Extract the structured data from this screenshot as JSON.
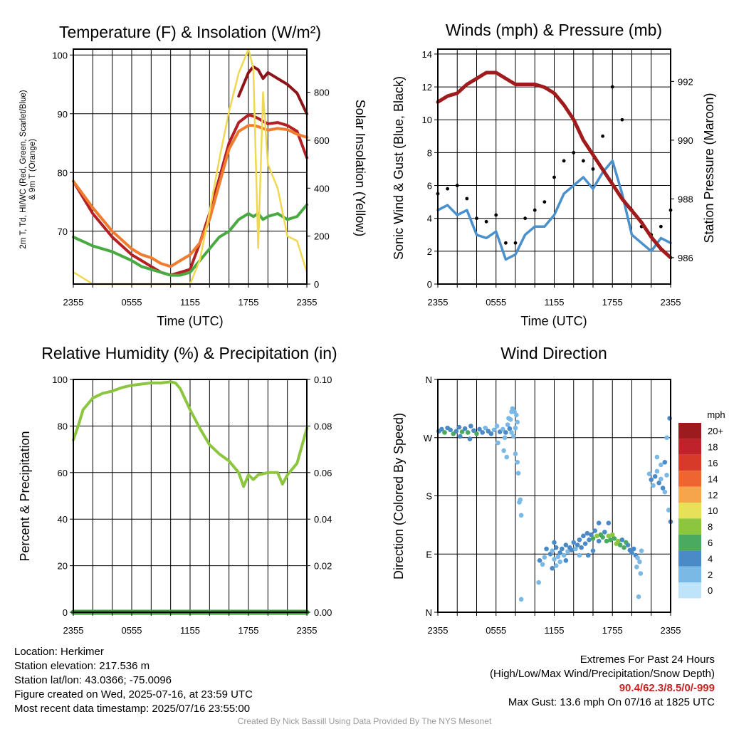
{
  "chart_data": [
    {
      "type": "line",
      "title": "Temperature (F) & Insolation (W/m²)",
      "xlabel": "Time (UTC)",
      "ylabel_line1": "2m T, Td, HI/WC (Red, Green, Scarlet/Blue)",
      "ylabel_line2": "& 9m T (Orange)",
      "y2label": "Solar Insolation (Yellow)",
      "x_ticks": [
        "2355",
        "0555",
        "1155",
        "1755",
        "2355"
      ],
      "y_ticks": [
        "70",
        "80",
        "90",
        "100"
      ],
      "y2_ticks": [
        "0",
        "200",
        "400",
        "600",
        "800"
      ],
      "ylim": [
        61,
        101
      ],
      "y2lim": [
        0,
        980
      ],
      "x_hours": [
        0,
        2,
        4,
        6,
        7,
        8,
        9,
        10,
        11,
        12,
        13,
        14,
        15,
        16,
        17,
        18,
        18.5,
        19,
        19.5,
        20,
        21,
        22,
        23,
        24
      ],
      "series": [
        {
          "key": "t2m",
          "color": "#b52025",
          "values": [
            78.5,
            73,
            69,
            66,
            65,
            64,
            63,
            62.5,
            63,
            63.5,
            68,
            73,
            79,
            85,
            88.5,
            89.8,
            89.6,
            89.2,
            88.7,
            88.3,
            88.5,
            88,
            87,
            82.5
          ]
        },
        {
          "key": "t9m",
          "color": "#f07c30",
          "values": [
            78.5,
            74,
            70,
            67,
            66,
            65.5,
            64.5,
            64,
            65,
            66,
            68,
            72,
            78,
            84,
            87,
            88,
            88,
            87.8,
            87.5,
            87.2,
            87.5,
            87.3,
            86.5,
            86
          ]
        },
        {
          "key": "td",
          "color": "#4aaa42",
          "values": [
            69,
            67.5,
            66.5,
            65,
            64,
            63.5,
            63,
            62.5,
            62.5,
            63,
            65,
            67,
            69,
            70,
            72,
            73,
            72.5,
            73,
            72,
            72.5,
            73,
            72,
            72.5,
            74.5
          ]
        },
        {
          "key": "hi",
          "color": "#8c1418",
          "values": [
            null,
            null,
            null,
            null,
            null,
            null,
            null,
            null,
            null,
            null,
            null,
            null,
            null,
            null,
            93,
            97,
            98,
            97.5,
            96,
            97,
            96,
            95,
            93.5,
            90
          ]
        },
        {
          "key": "solar",
          "axis": "right",
          "color": "#f0d850",
          "values": [
            50,
            0,
            0,
            0,
            0,
            0,
            0,
            0,
            0,
            0,
            100,
            300,
            520,
            720,
            880,
            980,
            900,
            150,
            800,
            500,
            400,
            200,
            180,
            50
          ]
        }
      ]
    },
    {
      "type": "line",
      "title": "Winds (mph) & Pressure (mb)",
      "xlabel": "Time (UTC)",
      "ylabel": "Sonic Wind & Gust (Blue, Black)",
      "y2label": "Station Pressure (Maroon)",
      "x_ticks": [
        "2355",
        "0555",
        "1155",
        "1755",
        "2355"
      ],
      "y_ticks": [
        "0",
        "2",
        "4",
        "6",
        "8",
        "10",
        "12",
        "14"
      ],
      "y2_ticks": [
        "986",
        "988",
        "990",
        "992"
      ],
      "ylim": [
        0,
        14.3
      ],
      "y2lim": [
        985.1,
        993.1
      ],
      "wind_x_hours": [
        0,
        1,
        2,
        3,
        4,
        5,
        6,
        7,
        8,
        9,
        10,
        11,
        12,
        13,
        14,
        15,
        16,
        17,
        18,
        19,
        20,
        21,
        22,
        23,
        24
      ],
      "wind": {
        "name": "Sonic Wind",
        "color": "#4a90cc",
        "values": [
          4.5,
          4.8,
          4.2,
          4.5,
          3.0,
          2.8,
          3.2,
          1.5,
          1.8,
          3.0,
          3.5,
          3.5,
          4.2,
          5.5,
          6.0,
          6.5,
          5.8,
          6.8,
          7.5,
          5.5,
          3.0,
          2.5,
          2.0,
          2.8,
          2.5
        ]
      },
      "gust": {
        "name": "Gust",
        "color": "#000000",
        "values": [
          5.5,
          5.8,
          6.0,
          5.2,
          4.0,
          3.8,
          4.2,
          2.5,
          2.5,
          4.0,
          4.5,
          5.0,
          6.5,
          7.5,
          8.0,
          7.5,
          7.0,
          9.0,
          12.0,
          10.0,
          4.5,
          3.5,
          3.0,
          3.5,
          4.5
        ]
      },
      "pressure": {
        "name": "Station Pressure",
        "color": "#a01c1c",
        "x_hours": [
          0,
          1,
          2,
          3,
          4,
          5,
          6,
          7,
          8,
          9,
          10,
          11,
          12,
          13,
          14,
          15,
          16,
          17,
          18,
          19,
          20,
          21,
          22,
          23,
          24
        ],
        "values": [
          991.3,
          991.5,
          991.6,
          991.9,
          992.1,
          992.3,
          992.3,
          992.1,
          991.9,
          991.9,
          991.9,
          991.8,
          991.6,
          991.2,
          990.7,
          990.0,
          989.5,
          989.0,
          988.5,
          988.0,
          987.6,
          987.2,
          986.7,
          986.3,
          986.0
        ]
      }
    },
    {
      "type": "line",
      "title": "Relative Humidity (%) & Precipitation (in)",
      "ylabel": "Percent & Precipitation",
      "x_ticks": [
        "2355",
        "0555",
        "1155",
        "1755",
        "2355"
      ],
      "y_ticks": [
        "0",
        "20",
        "40",
        "60",
        "80",
        "100"
      ],
      "y2_ticks": [
        "0.00",
        "0.02",
        "0.04",
        "0.06",
        "0.08",
        "0.10"
      ],
      "ylim": [
        0,
        100
      ],
      "y2lim": [
        0,
        0.1
      ],
      "x_hours": [
        0,
        0.5,
        1,
        2,
        3,
        4,
        5,
        6,
        7,
        8,
        9,
        10,
        10.5,
        11,
        12,
        13,
        14,
        15,
        16,
        17,
        17.5,
        18,
        18.5,
        19,
        20,
        21,
        21.5,
        22,
        23,
        24
      ],
      "rh": {
        "name": "Relative Humidity",
        "color": "#8cc63f",
        "values": [
          74,
          80,
          87,
          92,
          94,
          95,
          96.5,
          97.5,
          98,
          98.5,
          98.5,
          99,
          98.5,
          96,
          87,
          79,
          72,
          68,
          65,
          60,
          54,
          59,
          57,
          59,
          60,
          60,
          55,
          59,
          64,
          79
        ]
      },
      "precip": {
        "name": "Precipitation",
        "color": "#3a9a3a",
        "values": [
          0,
          0,
          0,
          0,
          0,
          0,
          0,
          0,
          0,
          0,
          0,
          0,
          0,
          0,
          0,
          0,
          0,
          0,
          0,
          0,
          0,
          0,
          0,
          0,
          0,
          0,
          0,
          0,
          0,
          0
        ]
      }
    },
    {
      "type": "scatter",
      "title": "Wind Direction",
      "ylabel": "Direction (Colored By Speed)",
      "x_ticks": [
        "2355",
        "0555",
        "1155",
        "1755",
        "2355"
      ],
      "y_ticks": [
        "N",
        "E",
        "S",
        "W",
        "N"
      ],
      "ylim": [
        0,
        360
      ],
      "legend": {
        "title": "mph",
        "labels": [
          "20+",
          "18",
          "16",
          "14",
          "12",
          "10",
          "8",
          "6",
          "4",
          "2",
          "0"
        ],
        "colors": [
          "#9b1b1e",
          "#c0222a",
          "#d83a2a",
          "#ef6530",
          "#f7a54a",
          "#e7e059",
          "#8cc63f",
          "#4aaa60",
          "#4a8ac6",
          "#7ab8e6",
          "#bde4f8"
        ]
      },
      "points": [
        [
          0.1,
          280,
          4
        ],
        [
          0.4,
          283,
          4
        ],
        [
          0.7,
          278,
          5
        ],
        [
          1.0,
          285,
          4
        ],
        [
          1.3,
          282,
          3
        ],
        [
          1.6,
          276,
          5
        ],
        [
          1.9,
          280,
          4
        ],
        [
          2.2,
          286,
          4
        ],
        [
          2.5,
          279,
          6
        ],
        [
          2.8,
          284,
          3
        ],
        [
          3.1,
          278,
          5
        ],
        [
          3.4,
          288,
          3
        ],
        [
          3.7,
          281,
          4
        ],
        [
          4.0,
          276,
          5
        ],
        [
          4.3,
          283,
          3
        ],
        [
          4.6,
          278,
          4
        ],
        [
          4.9,
          285,
          2
        ],
        [
          5.2,
          280,
          3
        ],
        [
          5.5,
          276,
          3
        ],
        [
          5.8,
          282,
          2
        ],
        [
          6.1,
          288,
          2
        ],
        [
          6.4,
          279,
          3
        ],
        [
          6.7,
          283,
          2
        ],
        [
          7.0,
          278,
          3
        ],
        [
          7.2,
          290,
          2
        ],
        [
          7.4,
          284,
          4
        ],
        [
          7.6,
          278,
          2
        ],
        [
          7.8,
          272,
          2
        ],
        [
          8.0,
          285,
          2
        ],
        [
          8.2,
          294,
          1
        ],
        [
          6.2,
          262,
          2
        ],
        [
          6.8,
          250,
          2
        ],
        [
          7.3,
          300,
          1
        ],
        [
          7.6,
          310,
          1
        ],
        [
          2.3,
          272,
          4
        ],
        [
          3.3,
          268,
          4
        ],
        [
          8.0,
          245,
          2
        ],
        [
          8.2,
          232,
          2
        ],
        [
          8.3,
          215,
          2
        ],
        [
          8.4,
          170,
          2
        ],
        [
          8.6,
          150,
          2
        ],
        [
          8.5,
          174,
          1
        ],
        [
          7.9,
          310,
          1
        ],
        [
          7.7,
          315,
          1
        ],
        [
          8.1,
          305,
          1
        ],
        [
          7.1,
          240,
          1
        ],
        [
          6.9,
          270,
          2
        ],
        [
          7.5,
          298,
          2
        ],
        [
          11.6,
          90,
          4
        ],
        [
          11.8,
          95,
          2
        ],
        [
          12.0,
          82,
          2
        ],
        [
          12.2,
          100,
          4
        ],
        [
          12.4,
          86,
          2
        ],
        [
          12.6,
          92,
          4
        ],
        [
          12.8,
          98,
          3
        ],
        [
          13.0,
          88,
          2
        ],
        [
          13.2,
          104,
          4
        ],
        [
          13.4,
          94,
          2
        ],
        [
          13.6,
          100,
          4
        ],
        [
          13.8,
          96,
          3
        ],
        [
          14.0,
          108,
          4
        ],
        [
          14.2,
          98,
          2
        ],
        [
          14.4,
          104,
          4
        ],
        [
          14.6,
          112,
          4
        ],
        [
          14.8,
          100,
          3
        ],
        [
          15.0,
          118,
          4
        ],
        [
          15.2,
          106,
          4
        ],
        [
          15.4,
          122,
          4
        ],
        [
          15.6,
          112,
          3
        ],
        [
          15.8,
          120,
          4
        ],
        [
          16.0,
          114,
          6
        ],
        [
          16.2,
          126,
          4
        ],
        [
          16.4,
          118,
          7
        ],
        [
          16.6,
          110,
          4
        ],
        [
          16.8,
          120,
          5
        ],
        [
          17.0,
          116,
          6
        ],
        [
          17.2,
          124,
          4
        ],
        [
          17.4,
          110,
          6
        ],
        [
          17.6,
          118,
          8
        ],
        [
          17.8,
          112,
          6
        ],
        [
          18.0,
          120,
          8
        ],
        [
          18.2,
          114,
          6
        ],
        [
          18.4,
          106,
          7
        ],
        [
          18.6,
          110,
          8
        ],
        [
          18.8,
          104,
          6
        ],
        [
          19.0,
          112,
          4
        ],
        [
          19.2,
          100,
          5
        ],
        [
          19.4,
          108,
          6
        ],
        [
          19.6,
          104,
          4
        ],
        [
          19.8,
          96,
          4
        ],
        [
          20.0,
          92,
          4
        ],
        [
          20.2,
          98,
          3
        ],
        [
          20.4,
          88,
          4
        ],
        [
          16.6,
          138,
          4
        ],
        [
          17.6,
          138,
          4
        ],
        [
          16.0,
          95,
          3
        ],
        [
          14.6,
          88,
          2
        ],
        [
          13.2,
          80,
          3
        ],
        [
          12.6,
          78,
          2
        ],
        [
          12.2,
          72,
          2
        ],
        [
          11.8,
          68,
          3
        ],
        [
          10.8,
          74,
          2
        ],
        [
          20.6,
          84,
          2
        ],
        [
          20.8,
          78,
          2
        ],
        [
          21.0,
          95,
          2
        ],
        [
          20.9,
          60,
          2
        ],
        [
          20.5,
          70,
          2
        ],
        [
          20.7,
          24,
          1
        ],
        [
          21.8,
          214,
          2
        ],
        [
          22.0,
          205,
          4
        ],
        [
          22.2,
          196,
          2
        ],
        [
          22.4,
          210,
          4
        ],
        [
          22.6,
          218,
          2
        ],
        [
          22.8,
          200,
          4
        ],
        [
          23.0,
          206,
          2
        ],
        [
          23.2,
          192,
          4
        ],
        [
          23.4,
          186,
          2
        ],
        [
          23.6,
          212,
          2
        ],
        [
          23.8,
          158,
          2
        ],
        [
          24.0,
          140,
          4
        ],
        [
          22.6,
          240,
          2
        ],
        [
          23.0,
          228,
          2
        ],
        [
          23.4,
          232,
          4
        ],
        [
          23.9,
          300,
          4
        ],
        [
          23.6,
          270,
          2
        ],
        [
          8.6,
          20,
          1
        ],
        [
          10.5,
          80,
          3
        ],
        [
          11.0,
          85,
          2
        ],
        [
          12.0,
          108,
          3
        ],
        [
          10.4,
          46,
          2
        ],
        [
          11.2,
          98,
          3
        ],
        [
          15.5,
          88,
          3
        ]
      ]
    }
  ],
  "footer": {
    "location": "Location: Herkimer",
    "elevation": "Station elevation: 217.536 m",
    "latlon": "Station lat/lon: 43.0366; -75.0096",
    "created": "Figure created on Wed, 2025-07-16, at 23:59 UTC",
    "recent": "Most recent data timestamp: 2025/07/16 23:55:00",
    "extremes_title": "Extremes For Past 24 Hours",
    "extremes_legend": "(High/Low/Max Wind/Precipitation/Snow Depth)",
    "extremes_values": "90.4/62.3/8.5/0/-999",
    "max_gust": "Max Gust: 13.6 mph On 07/16 at 1825 UTC",
    "credit": "Created By Nick Bassill Using Data Provided By The NYS Mesonet"
  }
}
